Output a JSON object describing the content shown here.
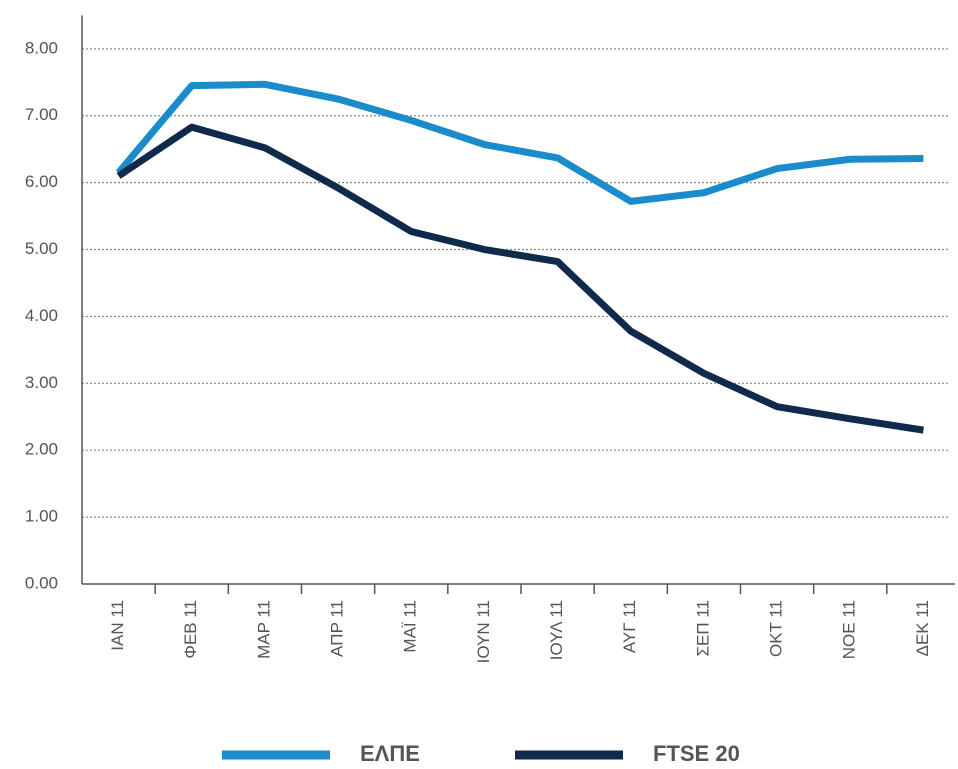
{
  "chart_data": {
    "type": "line",
    "categories": [
      "ΙΑΝ 11",
      "ΦΕΒ 11",
      "ΜΑΡ 11",
      "ΑΠΡ 11",
      "ΜΑΪ 11",
      "ΙΟΥΝ 11",
      "ΙΟΥΛ 11",
      "ΑΥΓ 11",
      "ΣΕΠ 11",
      "ΟΚΤ 11",
      "ΝΟΕ 11",
      "ΔΕΚ 11"
    ],
    "series": [
      {
        "name": "ΕΛΠΕ",
        "color": "#1a8ccc",
        "values": [
          6.15,
          7.45,
          7.47,
          7.25,
          6.93,
          6.57,
          6.37,
          5.72,
          5.85,
          6.21,
          6.35,
          6.36
        ]
      },
      {
        "name": "FTSE 20",
        "color": "#0f2a4a",
        "values": [
          6.1,
          6.83,
          6.52,
          5.92,
          5.27,
          5.0,
          4.82,
          3.78,
          3.15,
          2.65,
          2.47,
          2.3
        ]
      }
    ],
    "ylim": [
      0,
      8.5
    ],
    "yticks": [
      {
        "value": 0,
        "label": "0.00"
      },
      {
        "value": 1,
        "label": "1.00"
      },
      {
        "value": 2,
        "label": "2.00"
      },
      {
        "value": 3,
        "label": "3.00"
      },
      {
        "value": 4,
        "label": "4.00"
      },
      {
        "value": 5,
        "label": "5.00"
      },
      {
        "value": 6,
        "label": "6.00"
      },
      {
        "value": 7,
        "label": "7.00"
      },
      {
        "value": 8,
        "label": "8.00"
      }
    ],
    "grid": true
  }
}
